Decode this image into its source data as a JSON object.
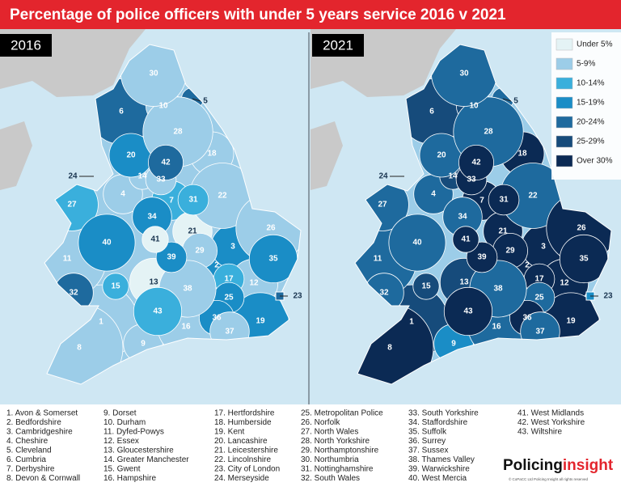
{
  "title": "Percentage of police officers with under 5 years service 2016 v 2021",
  "legend": [
    {
      "label": "Under 5%",
      "color": "#e4f3f5"
    },
    {
      "label": "5-9%",
      "color": "#9ccde8"
    },
    {
      "label": "10-14%",
      "color": "#3aafdc"
    },
    {
      "label": "15-19%",
      "color": "#1a8dc6"
    },
    {
      "label": "20-24%",
      "color": "#1e6a9e"
    },
    {
      "label": "25-29%",
      "color": "#164b7b"
    },
    {
      "label": "Over 30%",
      "color": "#0b2a54"
    }
  ],
  "maps": [
    {
      "year": "2016",
      "classes": [
        1,
        3,
        3,
        1,
        4,
        4,
        2,
        1,
        1,
        1,
        1,
        1,
        0,
        1,
        2,
        1,
        2,
        1,
        3,
        3,
        0,
        1,
        4,
        4,
        3,
        1,
        2,
        1,
        1,
        1,
        2,
        4,
        1,
        3,
        3,
        3,
        1,
        1,
        3,
        3,
        0,
        4,
        2
      ]
    },
    {
      "year": "2021",
      "classes": [
        5,
        6,
        6,
        4,
        4,
        5,
        6,
        6,
        3,
        5,
        4,
        6,
        5,
        5,
        5,
        4,
        6,
        6,
        6,
        4,
        6,
        4,
        3,
        4,
        4,
        6,
        4,
        4,
        6,
        4,
        6,
        4,
        6,
        4,
        6,
        6,
        4,
        4,
        6,
        4,
        6,
        6,
        6
      ]
    }
  ],
  "forces": [
    {
      "label": "1. Avon & Somerset",
      "map_label": "1"
    },
    {
      "label": "2. Bedfordshire",
      "map_label": "2"
    },
    {
      "label": "3. Cambridgeshire",
      "map_label": "3"
    },
    {
      "label": "4. Cheshire",
      "map_label": "4"
    },
    {
      "label": "5. Cleveland",
      "map_label": "5"
    },
    {
      "label": "6. Cumbria",
      "map_label": "6"
    },
    {
      "label": "7. Derbyshire",
      "map_label": "7"
    },
    {
      "label": "8. Devon & Cornwall",
      "map_label": "8"
    },
    {
      "label": "9. Dorset",
      "map_label": "9"
    },
    {
      "label": "10. Durham",
      "map_label": "10"
    },
    {
      "label": "11. Dyfed-Powys",
      "map_label": "11"
    },
    {
      "label": "12. Essex",
      "map_label": "12"
    },
    {
      "label": "13. Gloucestershire",
      "map_label": "13"
    },
    {
      "label": "14. Greater Manchester",
      "map_label": "14"
    },
    {
      "label": "15. Gwent",
      "map_label": "15"
    },
    {
      "label": "16. Hampshire",
      "map_label": "16"
    },
    {
      "label": "17. Hertfordshire",
      "map_label": "17"
    },
    {
      "label": "18. Humberside",
      "map_label": "18"
    },
    {
      "label": "19. Kent",
      "map_label": "19"
    },
    {
      "label": "20. Lancashire",
      "map_label": "20"
    },
    {
      "label": "21. Leicestershire",
      "map_label": "21"
    },
    {
      "label": "22. Lincolnshire",
      "map_label": "22"
    },
    {
      "label": "23. City of London",
      "map_label": "23"
    },
    {
      "label": "24. Merseyside",
      "map_label": "24"
    },
    {
      "label": "25. Metropolitan Police",
      "map_label": "25"
    },
    {
      "label": "26. Norfolk",
      "map_label": "26"
    },
    {
      "label": "27. North Wales",
      "map_label": "27"
    },
    {
      "label": "28. North Yorkshire",
      "map_label": "28"
    },
    {
      "label": "29. Northamptonshire",
      "map_label": "29"
    },
    {
      "label": "30. Northumbria",
      "map_label": "30"
    },
    {
      "label": "31. Nottinghamshire",
      "map_label": "31"
    },
    {
      "label": "32. South Wales",
      "map_label": "32"
    },
    {
      "label": "33. South Yorkshire",
      "map_label": "33"
    },
    {
      "label": "34. Staffordshire",
      "map_label": "34"
    },
    {
      "label": "35. Suffolk",
      "map_label": "35"
    },
    {
      "label": "36. Surrey",
      "map_label": "36"
    },
    {
      "label": "37. Sussex",
      "map_label": "37"
    },
    {
      "label": "38. Thames Valley",
      "map_label": "38"
    },
    {
      "label": "39. Warwickshire",
      "map_label": "39"
    },
    {
      "label": "40. West Mercia",
      "map_label": "40"
    },
    {
      "label": "41. West Midlands",
      "map_label": "41"
    },
    {
      "label": "42. West Yorkshire",
      "map_label": "42"
    },
    {
      "label": "43. Wiltshire",
      "map_label": "43"
    }
  ],
  "logo": {
    "part1": "Policing",
    "part2": "insight",
    "copyright": "© CoPaCC Ltd Policing Insight all rights reserved"
  }
}
